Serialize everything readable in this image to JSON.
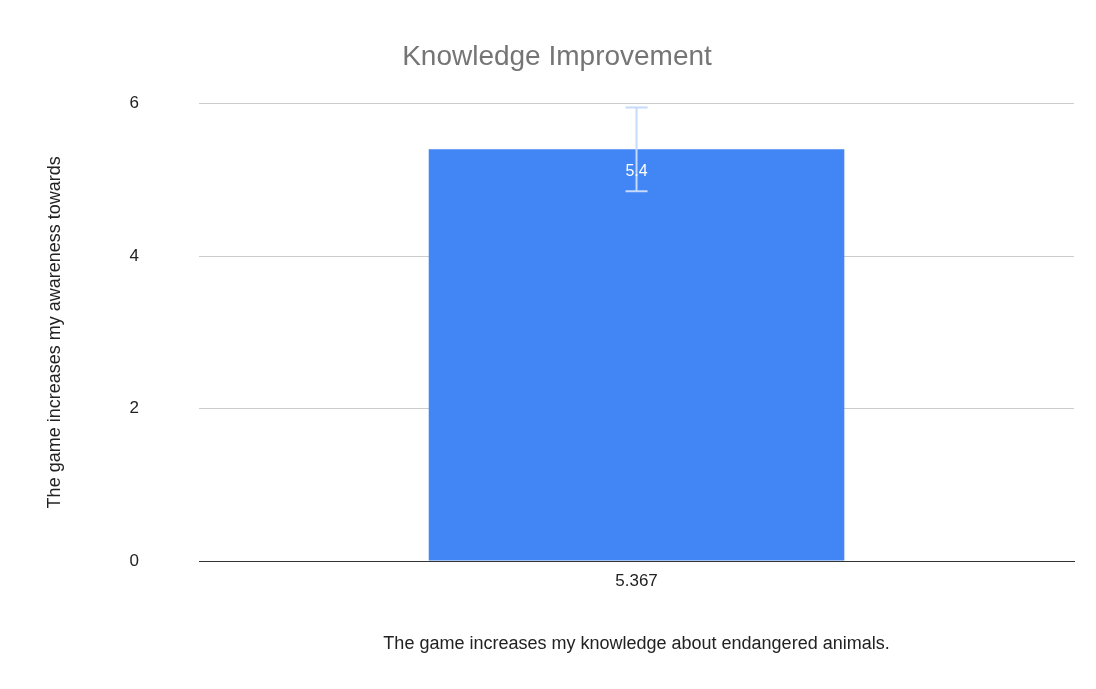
{
  "chart_data": {
    "type": "bar",
    "title": "Knowledge Improvement",
    "xlabel": "The game increases my knowledge about endangered animals.",
    "ylabel": "The game increases my awareness towards",
    "categories": [
      "5.367"
    ],
    "series": [
      {
        "color": "#4285f4",
        "values": [
          5.4
        ],
        "errors": [
          [
            4.85,
            5.95
          ]
        ]
      }
    ],
    "ylim": [
      0,
      6
    ],
    "yticks": [
      0,
      2,
      4,
      6
    ],
    "grid": "y",
    "legend": false,
    "data_labels": true
  }
}
